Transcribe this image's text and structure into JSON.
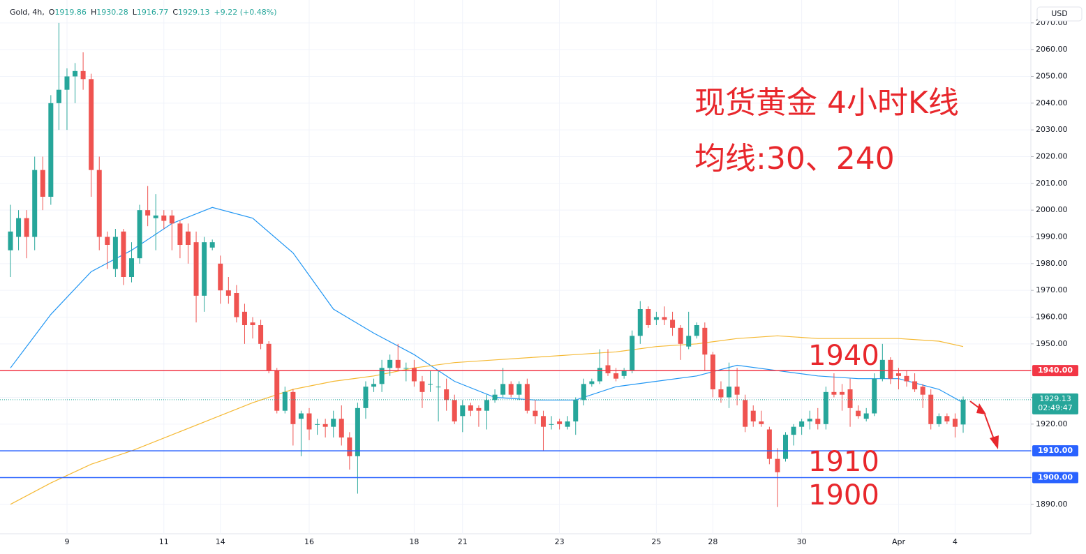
{
  "header": {
    "symbol": "Gold, 4h,",
    "fields": [
      {
        "key": "O",
        "text": "1919.86"
      },
      {
        "key": "H",
        "text": "1930.28"
      },
      {
        "key": "L",
        "text": "1916.77"
      },
      {
        "key": "C",
        "text": "1929.13"
      }
    ],
    "change": "+9.22 (+0.48%)"
  },
  "chart_data": {
    "type": "candlestick",
    "title": "现货黄金 4小时K线",
    "subtitle": "均线:30、240",
    "currency": "USD",
    "up_color": "#26a69a",
    "down_color": "#ef5350",
    "grid": true,
    "categories": [
      null,
      null,
      null,
      null,
      null,
      null,
      null,
      "9",
      null,
      null,
      null,
      null,
      null,
      null,
      null,
      null,
      null,
      null,
      null,
      "11",
      null,
      null,
      null,
      null,
      null,
      null,
      "14",
      null,
      null,
      null,
      null,
      null,
      null,
      null,
      null,
      null,
      null,
      "16",
      null,
      null,
      null,
      null,
      null,
      null,
      null,
      null,
      null,
      null,
      null,
      null,
      "18",
      null,
      null,
      null,
      null,
      null,
      "21",
      null,
      null,
      null,
      null,
      null,
      null,
      null,
      null,
      null,
      null,
      null,
      "23",
      null,
      null,
      null,
      null,
      null,
      null,
      null,
      null,
      null,
      null,
      null,
      "25",
      null,
      null,
      null,
      null,
      null,
      null,
      "28",
      null,
      null,
      null,
      null,
      null,
      null,
      null,
      null,
      null,
      null,
      "30",
      null,
      null,
      null,
      null,
      null,
      null,
      null,
      null,
      null,
      null,
      null,
      "Apr",
      null,
      null,
      null,
      null,
      null,
      null,
      "4",
      null
    ],
    "ohlc": [
      [
        1985,
        2002,
        1975,
        1992
      ],
      [
        1990,
        2000,
        1985,
        1997
      ],
      [
        1997,
        2000,
        1982,
        1990
      ],
      [
        1990,
        2020,
        1985,
        2015
      ],
      [
        2015,
        2020,
        2000,
        2005
      ],
      [
        2005,
        2043,
        2002,
        2040
      ],
      [
        2040,
        2070,
        2030,
        2045
      ],
      [
        2045,
        2053,
        2030,
        2050
      ],
      [
        2050,
        2055,
        2040,
        2052
      ],
      [
        2052,
        2059,
        2045,
        2049
      ],
      [
        2049,
        2051,
        2005,
        2015
      ],
      [
        2015,
        2020,
        1985,
        1990
      ],
      [
        1990,
        1992,
        1978,
        1987
      ],
      [
        1978,
        1993,
        1975,
        1990
      ],
      [
        1992,
        1993,
        1972,
        1975
      ],
      [
        1975,
        1988,
        1973,
        1982
      ],
      [
        1982,
        2002,
        1980,
        2000
      ],
      [
        2000,
        2009,
        1994,
        1998
      ],
      [
        1997,
        2006,
        1985,
        1998
      ],
      [
        1998,
        2000,
        1993,
        1996
      ],
      [
        1998,
        2000,
        1985,
        1995
      ],
      [
        1995,
        1996,
        1982,
        1987
      ],
      [
        1992,
        1995,
        1980,
        1987
      ],
      [
        1988,
        1992,
        1958,
        1968
      ],
      [
        1968,
        1990,
        1962,
        1988
      ],
      [
        1986,
        1989,
        1985,
        1988
      ],
      [
        1980,
        1983,
        1965,
        1970
      ],
      [
        1970,
        1975,
        1965,
        1968
      ],
      [
        1969,
        1972,
        1958,
        1960
      ],
      [
        1962,
        1965,
        1950,
        1957
      ],
      [
        1958,
        1960,
        1952,
        1957
      ],
      [
        1957,
        1959,
        1948,
        1950
      ],
      [
        1950,
        1951,
        1939,
        1940
      ],
      [
        1940,
        1941,
        1924,
        1925
      ],
      [
        1925,
        1934,
        1924,
        1932
      ],
      [
        1932,
        1933,
        1912,
        1920
      ],
      [
        1922,
        1925,
        1908,
        1924
      ],
      [
        1924,
        1926,
        1914,
        1918
      ],
      [
        1920,
        1922,
        1916,
        1920
      ],
      [
        1920,
        1922,
        1915,
        1919
      ],
      [
        1919,
        1925,
        1915,
        1922
      ],
      [
        1922,
        1927,
        1912,
        1915
      ],
      [
        1915,
        1917,
        1903,
        1908
      ],
      [
        1908,
        1928,
        1894,
        1926
      ],
      [
        1926,
        1936,
        1922,
        1934
      ],
      [
        1934,
        1937,
        1932,
        1935
      ],
      [
        1935,
        1944,
        1932,
        1941
      ],
      [
        1941,
        1946,
        1938,
        1944
      ],
      [
        1944,
        1950,
        1940,
        1941
      ],
      [
        1941,
        1943,
        1936,
        1941
      ],
      [
        1941,
        1944,
        1934,
        1936
      ],
      [
        1936,
        1938,
        1926,
        1932
      ],
      [
        1935,
        1940,
        1932,
        1935
      ],
      [
        1934,
        1940,
        1921,
        1934
      ],
      [
        1933,
        1937,
        1925,
        1929
      ],
      [
        1929,
        1931,
        1920,
        1921
      ],
      [
        1923,
        1929,
        1917,
        1927
      ],
      [
        1927,
        1928,
        1923,
        1925
      ],
      [
        1926,
        1927,
        1919,
        1925
      ],
      [
        1925,
        1931,
        1918,
        1929
      ],
      [
        1929,
        1933,
        1928,
        1931
      ],
      [
        1931,
        1941,
        1930,
        1935
      ],
      [
        1935,
        1936,
        1930,
        1931
      ],
      [
        1931,
        1936,
        1929,
        1935
      ],
      [
        1935,
        1937,
        1924,
        1925
      ],
      [
        1925,
        1929,
        1920,
        1923
      ],
      [
        1923,
        1925,
        1910,
        1919
      ],
      [
        1920,
        1923,
        1918,
        1920
      ],
      [
        1921,
        1922,
        1918,
        1920
      ],
      [
        1919,
        1923,
        1918,
        1921
      ],
      [
        1921,
        1930,
        1916,
        1929
      ],
      [
        1929,
        1937,
        1927,
        1935
      ],
      [
        1935,
        1937,
        1934,
        1936
      ],
      [
        1936,
        1948,
        1935,
        1941
      ],
      [
        1942,
        1948,
        1938,
        1939
      ],
      [
        1939,
        1941,
        1936,
        1937
      ],
      [
        1938,
        1941,
        1937,
        1940
      ],
      [
        1940,
        1955,
        1939,
        1953
      ],
      [
        1953,
        1966,
        1950,
        1963
      ],
      [
        1963,
        1964,
        1956,
        1957
      ],
      [
        1959,
        1962,
        1957,
        1960
      ],
      [
        1960,
        1964,
        1957,
        1959
      ],
      [
        1959,
        1962,
        1953,
        1956
      ],
      [
        1956,
        1957,
        1944,
        1950
      ],
      [
        1949,
        1962,
        1948,
        1953
      ],
      [
        1953,
        1958,
        1952,
        1957
      ],
      [
        1956,
        1958,
        1940,
        1946
      ],
      [
        1946,
        1947,
        1930,
        1933
      ],
      [
        1933,
        1936,
        1928,
        1930
      ],
      [
        1930,
        1943,
        1926,
        1934
      ],
      [
        1934,
        1941,
        1927,
        1931
      ],
      [
        1929,
        1931,
        1917,
        1919
      ],
      [
        1925,
        1927,
        1919,
        1921
      ],
      [
        1921,
        1925,
        1919,
        1920
      ],
      [
        1918,
        1919,
        1905,
        1907
      ],
      [
        1907,
        1911,
        1889,
        1902
      ],
      [
        1907,
        1917,
        1906,
        1916
      ],
      [
        1916,
        1920,
        1912,
        1919
      ],
      [
        1919,
        1922,
        1916,
        1921
      ],
      [
        1921,
        1925,
        1918,
        1922
      ],
      [
        1922,
        1926,
        1918,
        1920
      ],
      [
        1920,
        1934,
        1918,
        1932
      ],
      [
        1932,
        1939,
        1930,
        1931
      ],
      [
        1932,
        1935,
        1925,
        1931
      ],
      [
        1933,
        1937,
        1919,
        1926
      ],
      [
        1925,
        1927,
        1922,
        1923
      ],
      [
        1922,
        1926,
        1921,
        1924
      ],
      [
        1924,
        1939,
        1923,
        1937
      ],
      [
        1937,
        1950,
        1936,
        1944
      ],
      [
        1944,
        1945,
        1935,
        1937
      ],
      [
        1939,
        1941,
        1933,
        1938
      ],
      [
        1938,
        1940,
        1934,
        1936
      ],
      [
        1936,
        1939,
        1932,
        1933
      ],
      [
        1934,
        1935,
        1926,
        1931
      ],
      [
        1931,
        1933,
        1918,
        1920
      ],
      [
        1920,
        1924,
        1919,
        1923
      ],
      [
        1923,
        1924,
        1920,
        1921
      ],
      [
        1922,
        1924,
        1915,
        1919
      ],
      [
        1919.86,
        1930.28,
        1916.77,
        1929.13
      ]
    ],
    "series": [
      {
        "color": "#2196f3",
        "x": [
          0,
          5,
          10,
          15,
          20,
          25,
          30,
          35,
          40,
          45,
          50,
          55,
          60,
          65,
          70,
          75,
          80,
          85,
          90,
          95,
          100,
          105,
          110,
          115,
          118
        ],
        "values": [
          1941,
          1961,
          1977,
          1985,
          1995,
          2001,
          1997,
          1984,
          1963,
          1954,
          1946,
          1936,
          1930,
          1929,
          1929,
          1934,
          1936,
          1938,
          1942,
          1940,
          1938,
          1937,
          1937,
          1933,
          1928
        ]
      },
      {
        "color": "#f5b934",
        "x": [
          0,
          5,
          10,
          15,
          20,
          25,
          30,
          35,
          40,
          45,
          50,
          55,
          60,
          65,
          70,
          75,
          80,
          85,
          90,
          95,
          100,
          105,
          110,
          115,
          118
        ],
        "values": [
          1890,
          1898,
          1905,
          1910,
          1916,
          1922,
          1928,
          1933,
          1936,
          1938,
          1941,
          1943,
          1944,
          1945,
          1946,
          1947,
          1949,
          1950,
          1952,
          1953,
          1952,
          1952,
          1952,
          1951,
          1949
        ]
      }
    ],
    "ylim": [
      1879,
      2077
    ],
    "yticks": [
      {
        "value": 1890,
        "label": "1890.00"
      },
      {
        "value": 1900,
        "label": "1900.00"
      },
      {
        "value": 1910,
        "label": "1910.00"
      },
      {
        "value": 1920,
        "label": "1920.00"
      },
      {
        "value": 1930,
        "label": "1930.00"
      },
      {
        "value": 1940,
        "label": "1940.00"
      },
      {
        "value": 1950,
        "label": "1950.00"
      },
      {
        "value": 1960,
        "label": "1960.00"
      },
      {
        "value": 1970,
        "label": "1970.00"
      },
      {
        "value": 1980,
        "label": "1980.00"
      },
      {
        "value": 1990,
        "label": "1990.00"
      },
      {
        "value": 2000,
        "label": "2000.00"
      },
      {
        "value": 2010,
        "label": "2010.00"
      },
      {
        "value": 2020,
        "label": "2020.00"
      },
      {
        "value": 2030,
        "label": "2030.00"
      },
      {
        "value": 2040,
        "label": "2040.00"
      },
      {
        "value": 2050,
        "label": "2050.00"
      },
      {
        "value": 2060,
        "label": "2060.00"
      },
      {
        "value": 2070,
        "label": "2070.00"
      }
    ],
    "levels": [
      {
        "value": 1940,
        "label": "1940.00",
        "color": "#f23645"
      },
      {
        "value": 1910,
        "label": "1910.00",
        "color": "#2962ff"
      },
      {
        "value": 1900,
        "label": "1900.00",
        "color": "#2962ff"
      }
    ],
    "annotations": [
      "1940",
      "1910",
      "1900"
    ],
    "last_price": 1929.13,
    "countdown": "02:49:47"
  }
}
